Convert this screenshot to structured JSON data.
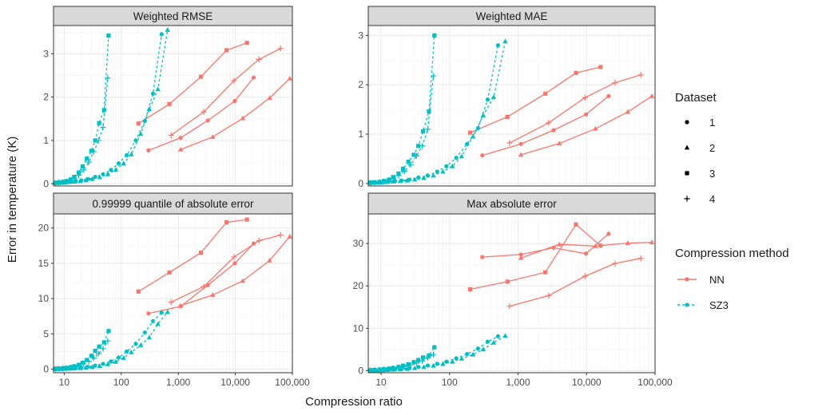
{
  "figure": {
    "ylabel": "Error in temperature (K)",
    "xlabel": "Compression ratio"
  },
  "legend": {
    "dataset_title": "Dataset",
    "dataset_items": [
      {
        "label": "1",
        "shape": "circle"
      },
      {
        "label": "2",
        "shape": "triangle"
      },
      {
        "label": "3",
        "shape": "square"
      },
      {
        "label": "4",
        "shape": "plus"
      }
    ],
    "method_title": "Compression method",
    "method_items": [
      {
        "label": "NN",
        "color": "#F8766D",
        "dashed": false
      },
      {
        "label": "SZ3",
        "color": "#00BFC4",
        "dashed": true
      }
    ]
  },
  "colors": {
    "NN": "#F8766D",
    "SZ3": "#00BFC4",
    "panel_bg": "#FFFFFF",
    "strip_bg": "#D9D9D9",
    "grid": "#EBEBEB"
  },
  "chart_data": [
    {
      "type": "line",
      "title": "Weighted RMSE",
      "x_scale": "log",
      "xlim": [
        6.5,
        100000
      ],
      "ylim": [
        -0.05,
        3.65
      ],
      "x_ticks": [
        10,
        100,
        1000,
        10000,
        100000
      ],
      "x_tick_labels": [
        "10",
        "100",
        "1,000",
        "10,000",
        "100,000"
      ],
      "y_ticks": [
        0,
        1,
        2,
        3
      ],
      "y_tick_labels": [
        "0",
        "1",
        "2",
        "3"
      ],
      "series": [
        {
          "method": "NN",
          "dataset": "1",
          "x": [
            300,
            1100,
            3300,
            9800,
            21000
          ],
          "y": [
            0.77,
            1.06,
            1.46,
            1.91,
            2.45
          ]
        },
        {
          "method": "NN",
          "dataset": "2",
          "x": [
            1100,
            4000,
            13500,
            40000,
            90000
          ],
          "y": [
            0.79,
            1.08,
            1.51,
            1.98,
            2.43
          ]
        },
        {
          "method": "NN",
          "dataset": "3",
          "x": [
            200,
            700,
            2500,
            7000,
            16000
          ],
          "y": [
            1.39,
            1.84,
            2.47,
            3.08,
            3.25
          ]
        },
        {
          "method": "NN",
          "dataset": "4",
          "x": [
            750,
            2800,
            9500,
            26000,
            62000
          ],
          "y": [
            1.12,
            1.66,
            2.38,
            2.87,
            3.12
          ]
        },
        {
          "method": "SZ3",
          "dataset": "1",
          "x": [
            7,
            8,
            9.5,
            11,
            13,
            16,
            20,
            26,
            35,
            48,
            66,
            90,
            125,
            180,
            260,
            360,
            510
          ],
          "y": [
            0.02,
            0.02,
            0.03,
            0.04,
            0.05,
            0.06,
            0.08,
            0.11,
            0.16,
            0.22,
            0.32,
            0.47,
            0.66,
            1.0,
            1.45,
            2.08,
            3.45
          ]
        },
        {
          "method": "SZ3",
          "dataset": "2",
          "x": [
            7,
            8.5,
            10,
            12,
            15,
            19,
            24,
            31,
            42,
            58,
            80,
            110,
            150,
            220,
            310,
            440,
            650
          ],
          "y": [
            0.02,
            0.02,
            0.03,
            0.04,
            0.05,
            0.06,
            0.08,
            0.11,
            0.15,
            0.22,
            0.32,
            0.47,
            0.68,
            1.15,
            1.72,
            2.18,
            3.55
          ]
        },
        {
          "method": "SZ3",
          "dataset": "3",
          "x": [
            7,
            8,
            9.5,
            11,
            13,
            15,
            18,
            21,
            25,
            30,
            35,
            41,
            50,
            60
          ],
          "y": [
            0.02,
            0.03,
            0.04,
            0.06,
            0.1,
            0.16,
            0.26,
            0.4,
            0.58,
            0.76,
            1.0,
            1.4,
            1.7,
            3.42
          ]
        },
        {
          "method": "SZ3",
          "dataset": "4",
          "x": [
            7,
            8,
            9.5,
            11,
            13,
            15,
            18,
            22,
            27,
            33,
            40,
            48,
            58
          ],
          "y": [
            0.02,
            0.03,
            0.04,
            0.05,
            0.08,
            0.12,
            0.2,
            0.32,
            0.5,
            0.74,
            1.0,
            1.3,
            2.44
          ]
        }
      ]
    },
    {
      "type": "line",
      "title": "Weighted MAE",
      "x_scale": "log",
      "xlim": [
        6.5,
        100000
      ],
      "ylim": [
        -0.05,
        3.2
      ],
      "x_ticks": [
        10,
        100,
        1000,
        10000,
        100000
      ],
      "x_tick_labels": [
        "10",
        "100",
        "1,000",
        "10,000",
        "100,000"
      ],
      "y_ticks": [
        0,
        1,
        2,
        3
      ],
      "y_tick_labels": [
        "0",
        "1",
        "2",
        "3"
      ],
      "series": [
        {
          "method": "NN",
          "dataset": "1",
          "x": [
            300,
            1100,
            3300,
            9800,
            21000
          ],
          "y": [
            0.57,
            0.8,
            1.08,
            1.4,
            1.77
          ]
        },
        {
          "method": "NN",
          "dataset": "2",
          "x": [
            1100,
            4000,
            13500,
            40000,
            90000
          ],
          "y": [
            0.58,
            0.81,
            1.11,
            1.45,
            1.77
          ]
        },
        {
          "method": "NN",
          "dataset": "3",
          "x": [
            200,
            700,
            2500,
            7000,
            16000
          ],
          "y": [
            1.03,
            1.35,
            1.82,
            2.24,
            2.36
          ]
        },
        {
          "method": "NN",
          "dataset": "4",
          "x": [
            750,
            2800,
            9500,
            26000,
            62000
          ],
          "y": [
            0.82,
            1.23,
            1.74,
            2.04,
            2.2
          ]
        },
        {
          "method": "SZ3",
          "dataset": "1",
          "x": [
            7,
            8,
            9.5,
            11,
            13,
            16,
            20,
            26,
            35,
            48,
            66,
            90,
            125,
            180,
            260,
            360,
            510
          ],
          "y": [
            0.01,
            0.02,
            0.02,
            0.03,
            0.04,
            0.05,
            0.06,
            0.08,
            0.12,
            0.16,
            0.24,
            0.35,
            0.52,
            0.8,
            1.12,
            1.7,
            2.8
          ]
        },
        {
          "method": "SZ3",
          "dataset": "2",
          "x": [
            7,
            8.5,
            10,
            12,
            15,
            19,
            24,
            31,
            42,
            58,
            80,
            110,
            150,
            220,
            310,
            440,
            650
          ],
          "y": [
            0.01,
            0.02,
            0.02,
            0.03,
            0.04,
            0.05,
            0.06,
            0.08,
            0.11,
            0.16,
            0.24,
            0.35,
            0.55,
            0.95,
            1.38,
            1.75,
            2.88
          ]
        },
        {
          "method": "SZ3",
          "dataset": "3",
          "x": [
            7,
            8,
            9.5,
            11,
            13,
            15,
            18,
            21,
            25,
            30,
            35,
            41,
            50,
            60
          ],
          "y": [
            0.02,
            0.02,
            0.03,
            0.05,
            0.08,
            0.13,
            0.2,
            0.3,
            0.44,
            0.58,
            0.76,
            1.06,
            1.46,
            3.0
          ]
        },
        {
          "method": "SZ3",
          "dataset": "4",
          "x": [
            7,
            8,
            9.5,
            11,
            13,
            15,
            18,
            22,
            27,
            33,
            40,
            48,
            58
          ],
          "y": [
            0.01,
            0.02,
            0.03,
            0.04,
            0.06,
            0.1,
            0.16,
            0.25,
            0.38,
            0.56,
            0.76,
            1.1,
            2.18
          ]
        }
      ]
    },
    {
      "type": "line",
      "title": "0.99999 quantile of absolute error",
      "x_scale": "log",
      "xlim": [
        6.5,
        100000
      ],
      "ylim": [
        -0.5,
        22
      ],
      "x_ticks": [
        10,
        100,
        1000,
        10000,
        100000
      ],
      "x_tick_labels": [
        "10",
        "100",
        "1,000",
        "10,000",
        "100,000"
      ],
      "y_ticks": [
        0,
        5,
        10,
        15,
        20
      ],
      "y_tick_labels": [
        "0",
        "5",
        "10",
        "15",
        "20"
      ],
      "series": [
        {
          "method": "NN",
          "dataset": "1",
          "x": [
            300,
            1100,
            3300,
            9800,
            21000
          ],
          "y": [
            7.9,
            8.9,
            11.9,
            15.0,
            17.8
          ]
        },
        {
          "method": "NN",
          "dataset": "2",
          "x": [
            1100,
            4000,
            13500,
            40000,
            90000
          ],
          "y": [
            9.0,
            10.5,
            12.5,
            15.4,
            18.8
          ]
        },
        {
          "method": "NN",
          "dataset": "3",
          "x": [
            200,
            700,
            2500,
            7000,
            16000
          ],
          "y": [
            11.0,
            13.7,
            16.5,
            20.8,
            21.2
          ]
        },
        {
          "method": "NN",
          "dataset": "4",
          "x": [
            750,
            2800,
            9500,
            26000,
            62000
          ],
          "y": [
            9.5,
            11.7,
            15.9,
            18.2,
            19.0
          ]
        },
        {
          "method": "SZ3",
          "dataset": "1",
          "x": [
            7,
            8,
            9.5,
            11,
            13,
            16,
            20,
            26,
            35,
            48,
            66,
            90,
            125,
            180,
            260,
            360,
            510
          ],
          "y": [
            0.02,
            0.03,
            0.05,
            0.07,
            0.1,
            0.15,
            0.22,
            0.33,
            0.5,
            0.75,
            1.1,
            1.65,
            2.5,
            3.6,
            5.2,
            6.8,
            8.0
          ]
        },
        {
          "method": "SZ3",
          "dataset": "2",
          "x": [
            7,
            8.5,
            10,
            12,
            15,
            19,
            24,
            31,
            42,
            58,
            80,
            110,
            150,
            220,
            310,
            440,
            650
          ],
          "y": [
            0.02,
            0.03,
            0.05,
            0.07,
            0.1,
            0.14,
            0.2,
            0.3,
            0.45,
            0.7,
            1.05,
            1.6,
            2.4,
            3.4,
            4.5,
            6.4,
            8.1
          ]
        },
        {
          "method": "SZ3",
          "dataset": "3",
          "x": [
            7,
            8,
            9.5,
            11,
            13,
            15,
            18,
            21,
            25,
            30,
            35,
            41,
            50,
            60
          ],
          "y": [
            0.05,
            0.08,
            0.12,
            0.18,
            0.28,
            0.4,
            0.6,
            0.9,
            1.3,
            1.9,
            2.6,
            3.2,
            3.8,
            5.4
          ]
        },
        {
          "method": "SZ3",
          "dataset": "4",
          "x": [
            7,
            8,
            9.5,
            11,
            13,
            15,
            18,
            22,
            27,
            33,
            40,
            48,
            58
          ],
          "y": [
            0.04,
            0.06,
            0.1,
            0.15,
            0.22,
            0.33,
            0.5,
            0.75,
            1.1,
            1.6,
            2.2,
            2.9,
            4.0
          ]
        }
      ]
    },
    {
      "type": "line",
      "title": "Max absolute error",
      "x_scale": "log",
      "xlim": [
        6.5,
        100000
      ],
      "ylim": [
        -0.5,
        37
      ],
      "x_ticks": [
        10,
        100,
        1000,
        10000,
        100000
      ],
      "x_tick_labels": [
        "10",
        "100",
        "1,000",
        "10,000",
        "100,000"
      ],
      "y_ticks": [
        0,
        10,
        20,
        30
      ],
      "y_tick_labels": [
        "0",
        "10",
        "20",
        "30"
      ],
      "series": [
        {
          "method": "NN",
          "dataset": "1",
          "x": [
            300,
            1100,
            3300,
            9800,
            21000
          ],
          "y": [
            26.8,
            27.4,
            29.0,
            27.6,
            32.3
          ]
        },
        {
          "method": "NN",
          "dataset": "2",
          "x": [
            1100,
            4000,
            13500,
            40000,
            90000
          ],
          "y": [
            26.6,
            29.8,
            29.4,
            30.1,
            30.3
          ]
        },
        {
          "method": "NN",
          "dataset": "3",
          "x": [
            200,
            700,
            2500,
            7000,
            16000
          ],
          "y": [
            19.2,
            21.0,
            23.2,
            34.5,
            29.5
          ]
        },
        {
          "method": "NN",
          "dataset": "4",
          "x": [
            750,
            2800,
            9500,
            26000,
            62000
          ],
          "y": [
            15.2,
            17.7,
            22.3,
            25.3,
            26.5
          ]
        },
        {
          "method": "SZ3",
          "dataset": "1",
          "x": [
            7,
            8,
            9.5,
            11,
            13,
            16,
            20,
            26,
            35,
            48,
            66,
            90,
            125,
            180,
            260,
            360,
            510
          ],
          "y": [
            0.05,
            0.07,
            0.1,
            0.15,
            0.2,
            0.3,
            0.42,
            0.6,
            0.85,
            1.2,
            1.6,
            2.1,
            2.9,
            3.9,
            5.2,
            6.8,
            8.1
          ]
        },
        {
          "method": "SZ3",
          "dataset": "2",
          "x": [
            7,
            8.5,
            10,
            12,
            15,
            19,
            24,
            31,
            42,
            58,
            80,
            110,
            150,
            220,
            310,
            440,
            650
          ],
          "y": [
            0.05,
            0.07,
            0.1,
            0.14,
            0.2,
            0.28,
            0.4,
            0.58,
            0.82,
            1.15,
            1.55,
            2.1,
            2.8,
            3.8,
            5.0,
            6.6,
            8.2
          ]
        },
        {
          "method": "SZ3",
          "dataset": "3",
          "x": [
            7,
            8,
            9.5,
            11,
            13,
            15,
            18,
            21,
            25,
            30,
            35,
            41,
            50,
            60
          ],
          "y": [
            0.1,
            0.15,
            0.22,
            0.32,
            0.45,
            0.62,
            0.85,
            1.15,
            1.5,
            2.0,
            2.5,
            3.1,
            3.6,
            5.5
          ]
        },
        {
          "method": "SZ3",
          "dataset": "4",
          "x": [
            7,
            8,
            9.5,
            11,
            13,
            15,
            18,
            22,
            27,
            33,
            40,
            48,
            58
          ],
          "y": [
            0.08,
            0.12,
            0.18,
            0.26,
            0.36,
            0.5,
            0.7,
            0.95,
            1.3,
            1.75,
            2.3,
            3.0,
            3.8
          ]
        }
      ]
    }
  ]
}
